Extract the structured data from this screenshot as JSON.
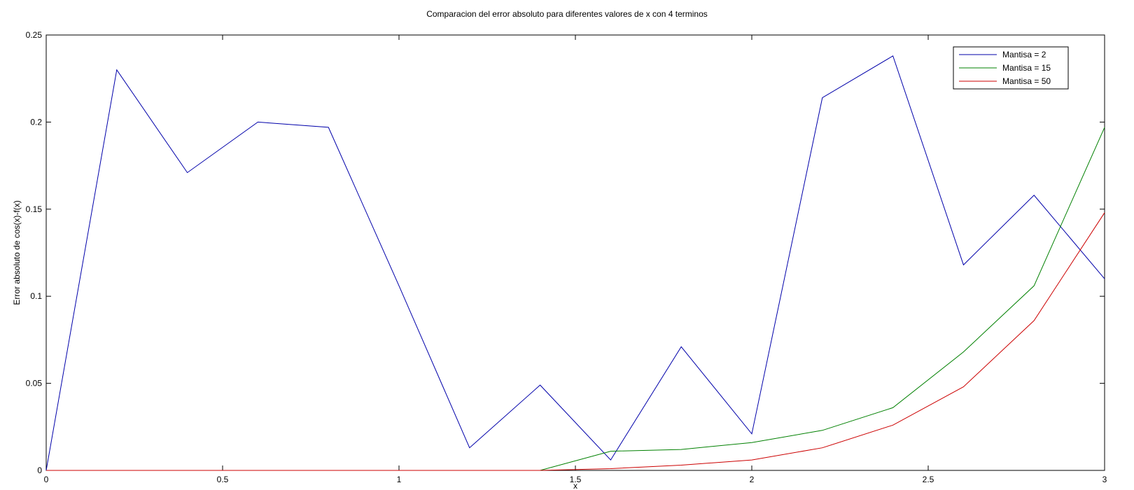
{
  "chart_data": {
    "type": "line",
    "title": "Comparacion del error absoluto para diferentes valores de x con 4 terminos",
    "xlabel": "x",
    "ylabel": "Error absoluto de cos(x)-f(x)",
    "xlim": [
      0,
      3
    ],
    "ylim": [
      0,
      0.25
    ],
    "xticks": [
      0,
      0.5,
      1,
      1.5,
      2,
      2.5,
      3
    ],
    "xtick_labels": [
      "0",
      "0.5",
      "1",
      "1.5",
      "2",
      "2.5",
      "3"
    ],
    "yticks": [
      0,
      0.05,
      0.1,
      0.15,
      0.2,
      0.25
    ],
    "ytick_labels": [
      "0",
      "0.05",
      "0.1",
      "0.15",
      "0.2",
      "0.25"
    ],
    "grid": false,
    "legend_position": "top-right",
    "x": [
      0,
      0.2,
      0.4,
      0.6,
      0.8,
      1.0,
      1.2,
      1.4,
      1.6,
      1.8,
      2.0,
      2.2,
      2.4,
      2.6,
      2.8,
      3.0
    ],
    "series": [
      {
        "name": "Mantisa = 2",
        "color": "#0000aa",
        "values": [
          0,
          0.23,
          0.171,
          0.2,
          0.197,
          0.106,
          0.013,
          0.049,
          0.006,
          0.071,
          0.021,
          0.214,
          0.238,
          0.118,
          0.158,
          0.11
        ]
      },
      {
        "name": "Mantisa = 15",
        "color": "#008000",
        "values": [
          0,
          0,
          0,
          0,
          0,
          0,
          0,
          0,
          0.011,
          0.012,
          0.016,
          0.023,
          0.036,
          0.068,
          0.106,
          0.197
        ]
      },
      {
        "name": "Mantisa = 50",
        "color": "#cc0000",
        "values": [
          0,
          0,
          0,
          0,
          0,
          0,
          0,
          0,
          0.001,
          0.003,
          0.006,
          0.013,
          0.026,
          0.048,
          0.086,
          0.148
        ]
      }
    ]
  }
}
